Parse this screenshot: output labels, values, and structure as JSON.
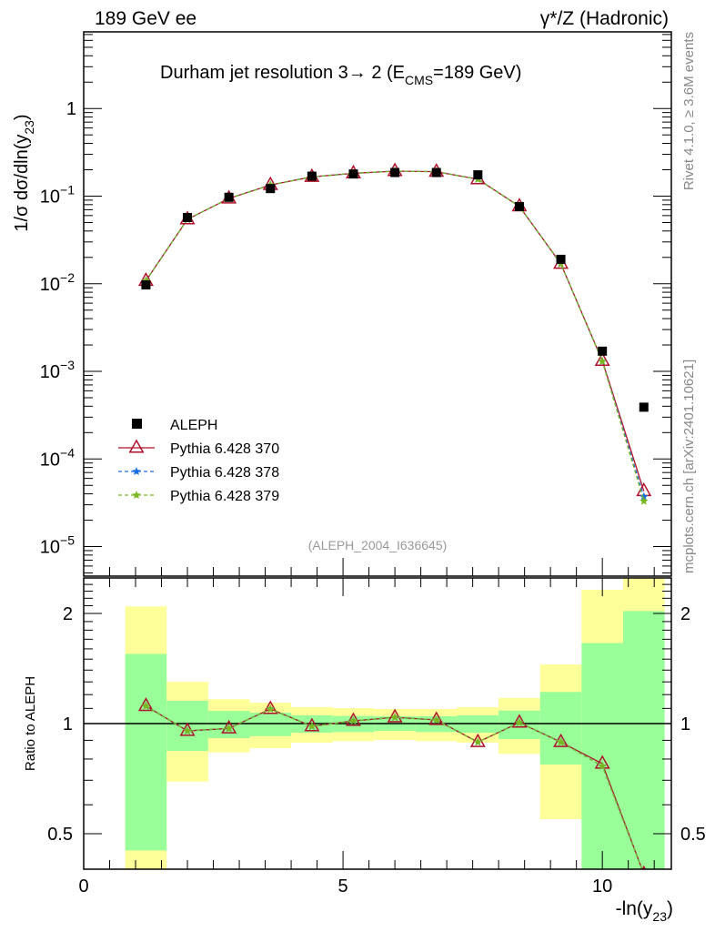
{
  "header": {
    "left": "189 GeV ee",
    "right": "γ*/Z (Hadronic)"
  },
  "side_text": {
    "rivet": "Rivet 4.1.0, ≥ 3.6M events",
    "mcplots": "mcplots.cern.ch [arXiv:2401.10621]"
  },
  "chart_data": [
    {
      "type": "line",
      "title_main": "Durham jet resolution 3→ 2 (E",
      "title_sub": "CMS",
      "title_end": "=189 GeV)",
      "ylabel_main": "1/σ  dσ/dln(y",
      "ylabel_sub": "23",
      "ylabel_end": ")",
      "yscale": "log",
      "ylim": [
        4.6e-06,
        7.5
      ],
      "xlim": [
        0,
        11.33
      ],
      "ytick_labels": [
        {
          "v": 1,
          "base": "1",
          "exp": ""
        },
        {
          "v": 0.1,
          "base": "10",
          "exp": "−1"
        },
        {
          "v": 0.01,
          "base": "10",
          "exp": "−2"
        },
        {
          "v": 0.001,
          "base": "10",
          "exp": "−3"
        },
        {
          "v": 0.0001,
          "base": "10",
          "exp": "−4"
        },
        {
          "v": 1e-05,
          "base": "10",
          "exp": "−5"
        }
      ],
      "watermark": "(ALEPH_2004_I636645)",
      "x": [
        1.2,
        2.0,
        2.8,
        3.6,
        4.4,
        5.2,
        6.0,
        6.8,
        7.6,
        8.4,
        9.2,
        10.0,
        10.8
      ],
      "series": [
        {
          "name": "ALEPH",
          "color": "#000000",
          "marker": "square",
          "values": [
            0.0097,
            0.057,
            0.097,
            0.122,
            0.169,
            0.179,
            0.186,
            0.186,
            0.175,
            0.076,
            0.019,
            0.0017,
            0.00039
          ]
        },
        {
          "name": "Pythia 6.428 370",
          "color": "#b0102a",
          "marker": "triangle",
          "dash": "",
          "values": [
            0.0108,
            0.0544,
            0.094,
            0.134,
            0.166,
            0.182,
            0.193,
            0.19,
            0.156,
            0.0765,
            0.0169,
            0.00132,
            4.3e-05
          ]
        },
        {
          "name": "Pythia 6.428 378",
          "color": "#1a6fe0",
          "marker": "star",
          "dash": "4,3",
          "values": [
            0.0108,
            0.0544,
            0.094,
            0.134,
            0.166,
            0.182,
            0.193,
            0.19,
            0.156,
            0.0765,
            0.0169,
            0.0013,
            3.7e-05
          ]
        },
        {
          "name": "Pythia 6.428 379",
          "color": "#7ab820",
          "marker": "star",
          "dash": "4,3",
          "values": [
            0.0108,
            0.0544,
            0.094,
            0.134,
            0.166,
            0.182,
            0.193,
            0.19,
            0.156,
            0.0765,
            0.0169,
            0.0013,
            3.3e-05
          ]
        }
      ]
    },
    {
      "type": "line",
      "ylabel": "Ratio to ALEPH",
      "xlabel_main": "-ln(y",
      "xlabel_sub": "23",
      "xlabel_end": ")",
      "yscale": "log",
      "ylim": [
        0.4,
        2.5
      ],
      "xlim": [
        0,
        11.33
      ],
      "ytick_labels": [
        {
          "v": 2,
          "label": "2"
        },
        {
          "v": 1,
          "label": "1"
        },
        {
          "v": 0.5,
          "label": "0.5"
        }
      ],
      "xtick_labels": [
        {
          "v": 0,
          "label": "0"
        },
        {
          "v": 5,
          "label": "5"
        },
        {
          "v": 10,
          "label": "10"
        }
      ],
      "bin_edges": [
        0.8,
        1.6,
        2.4,
        3.2,
        4.0,
        4.8,
        5.6,
        6.4,
        7.2,
        8.0,
        8.8,
        9.6,
        10.4,
        11.2
      ],
      "band_inner": {
        "color": "#99ff99",
        "lo": [
          0.45,
          0.842,
          0.912,
          0.924,
          0.944,
          0.948,
          0.955,
          0.948,
          0.944,
          0.907,
          0.773,
          0.3,
          0.3
        ],
        "hi": [
          1.55,
          1.154,
          1.083,
          1.071,
          1.053,
          1.049,
          1.047,
          1.047,
          1.053,
          1.085,
          1.22,
          1.66,
          2.03
        ]
      },
      "band_outer": {
        "color": "#ffff99",
        "lo": [
          0.3,
          0.694,
          0.834,
          0.857,
          0.887,
          0.895,
          0.902,
          0.895,
          0.887,
          0.826,
          0.548,
          0.3,
          0.3
        ],
        "hi": [
          2.09,
          1.3,
          1.165,
          1.14,
          1.109,
          1.102,
          1.096,
          1.096,
          1.109,
          1.175,
          1.45,
          2.32,
          3.0
        ]
      },
      "x": [
        1.2,
        2.0,
        2.8,
        3.6,
        4.4,
        5.2,
        6.0,
        6.8,
        7.6,
        8.4,
        9.2,
        10.0,
        10.8
      ],
      "series": [
        {
          "name": "Pythia 6.428 370",
          "color": "#b0102a",
          "values": [
            1.117,
            0.955,
            0.97,
            1.096,
            0.983,
            1.017,
            1.04,
            1.023,
            0.89,
            1.006,
            0.89,
            0.777,
            0.11
          ]
        },
        {
          "name": "Pythia 6.428 378",
          "color": "#1a6fe0",
          "values": [
            1.117,
            0.955,
            0.97,
            1.096,
            0.983,
            1.017,
            1.04,
            1.023,
            0.89,
            1.006,
            0.89,
            0.765,
            0.095
          ]
        },
        {
          "name": "Pythia 6.428 379",
          "color": "#7ab820",
          "values": [
            1.117,
            0.955,
            0.97,
            1.096,
            0.983,
            1.017,
            1.04,
            1.023,
            0.89,
            1.006,
            0.89,
            0.765,
            0.085
          ]
        }
      ]
    }
  ]
}
